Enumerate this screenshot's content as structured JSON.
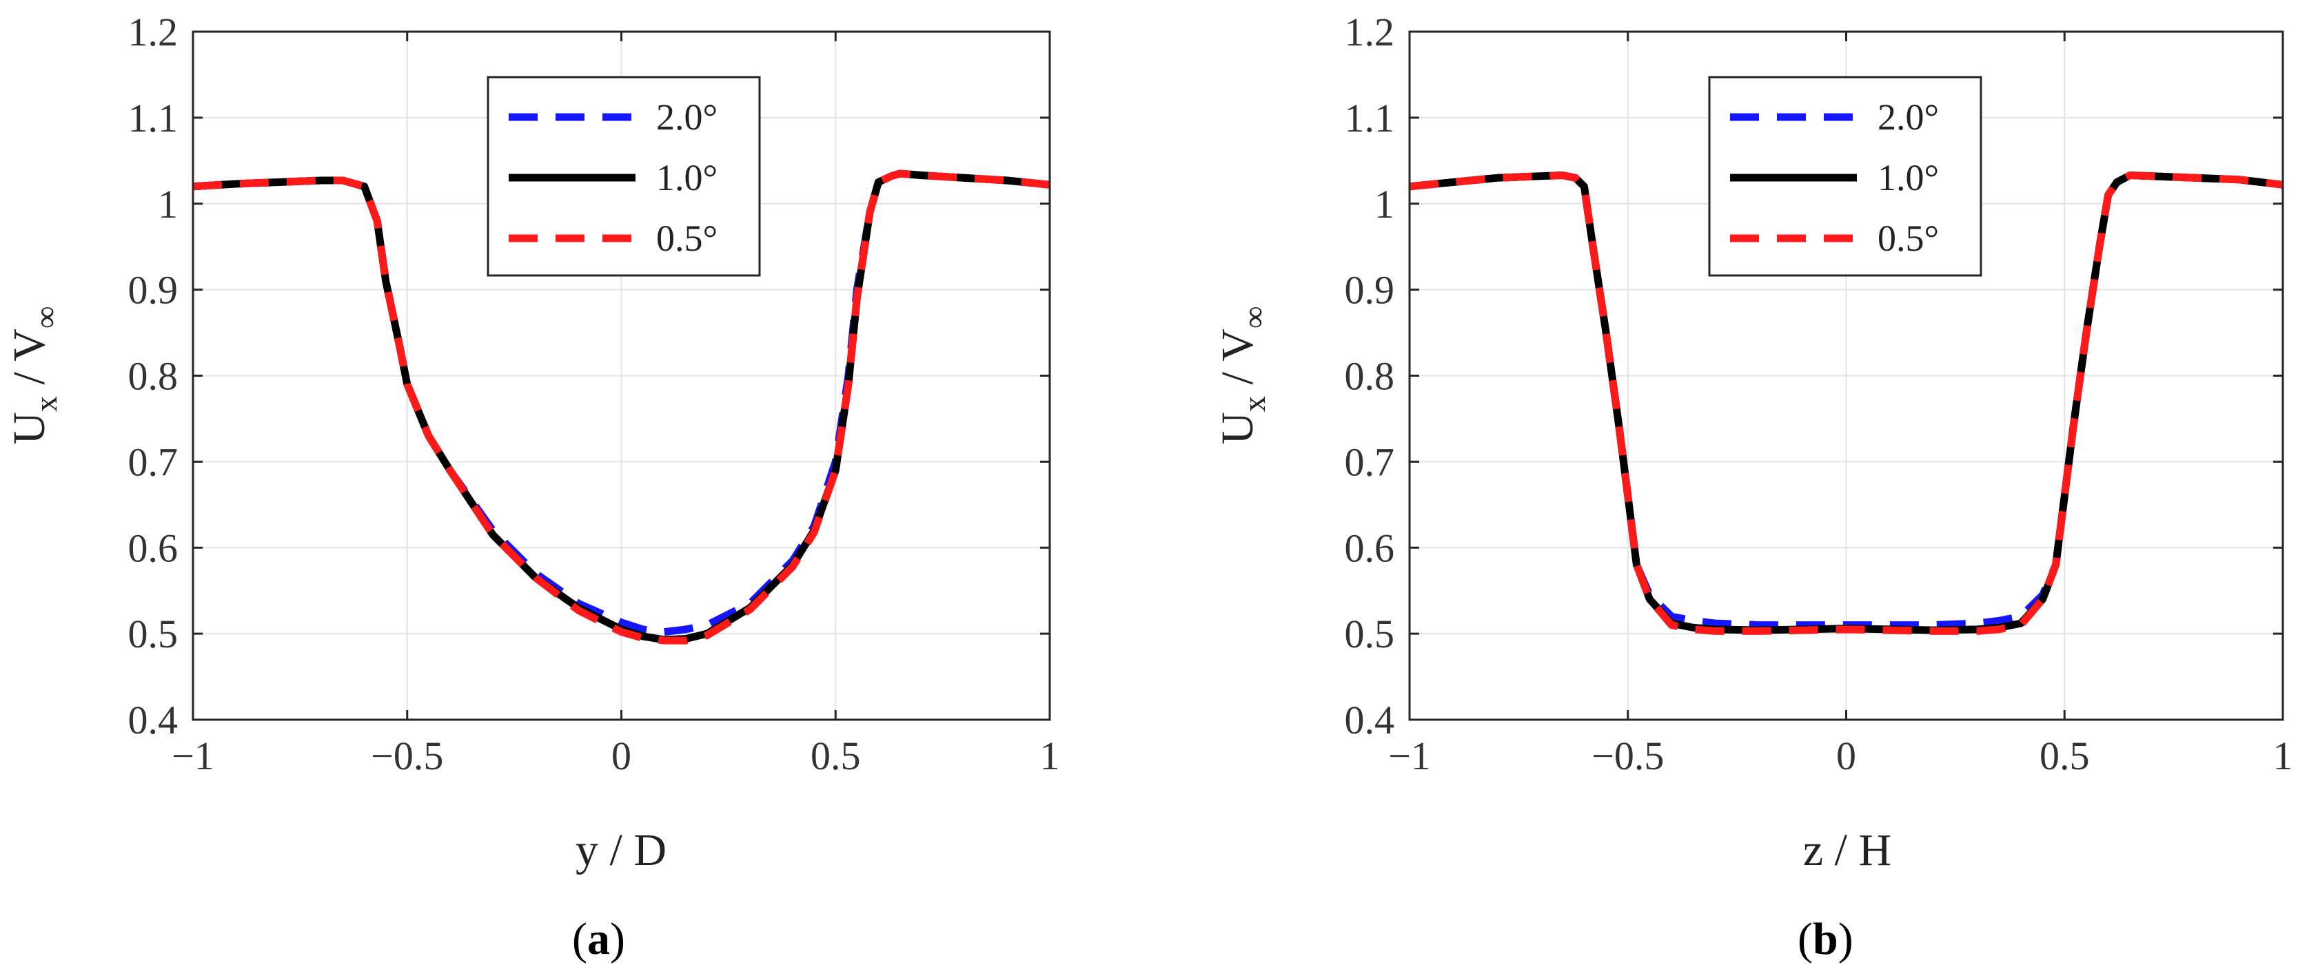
{
  "chart_data": [
    {
      "type": "line",
      "panel_label": "a",
      "xlabel": "y / D",
      "ylabel": {
        "main": "U",
        "sub1": "x",
        "mid": " / V",
        "sub2": "∞"
      },
      "xlim": [
        -1,
        1
      ],
      "ylim": [
        0.4,
        1.2
      ],
      "xticks": [
        -1,
        -0.5,
        0,
        0.5,
        1
      ],
      "xtick_labels": [
        "−1",
        "−0.5",
        "0",
        "0.5",
        "1"
      ],
      "yticks": [
        0.4,
        0.5,
        0.6,
        0.7,
        0.8,
        0.9,
        1.0,
        1.1,
        1.2
      ],
      "ytick_labels": [
        "0.4",
        "0.5",
        "0.6",
        "0.7",
        "0.8",
        "0.9",
        "1",
        "1.1",
        "1.2"
      ],
      "grid": true,
      "legend_position": "top-center",
      "series": [
        {
          "name": "2.0°",
          "color": "#1515ff",
          "style": "dashed",
          "x": [
            -1,
            -0.9,
            -0.8,
            -0.7,
            -0.65,
            -0.6,
            -0.57,
            -0.55,
            -0.52,
            -0.5,
            -0.45,
            -0.4,
            -0.3,
            -0.2,
            -0.1,
            0,
            0.05,
            0.1,
            0.15,
            0.2,
            0.3,
            0.4,
            0.45,
            0.5,
            0.53,
            0.55,
            0.58,
            0.6,
            0.63,
            0.65,
            0.7,
            0.8,
            0.9,
            1
          ],
          "y": [
            1.02,
            1.023,
            1.025,
            1.027,
            1.027,
            1.02,
            0.98,
            0.91,
            0.84,
            0.79,
            0.73,
            0.69,
            0.62,
            0.57,
            0.535,
            0.513,
            0.505,
            0.502,
            0.505,
            0.51,
            0.535,
            0.585,
            0.625,
            0.7,
            0.8,
            0.9,
            0.99,
            1.025,
            1.032,
            1.035,
            1.033,
            1.03,
            1.027,
            1.022
          ]
        },
        {
          "name": "1.0°",
          "color": "#000000",
          "style": "solid",
          "x": [
            -1,
            -0.9,
            -0.8,
            -0.7,
            -0.65,
            -0.6,
            -0.57,
            -0.55,
            -0.52,
            -0.5,
            -0.45,
            -0.4,
            -0.3,
            -0.2,
            -0.1,
            0,
            0.05,
            0.1,
            0.15,
            0.2,
            0.3,
            0.4,
            0.45,
            0.5,
            0.53,
            0.55,
            0.58,
            0.6,
            0.63,
            0.65,
            0.7,
            0.8,
            0.9,
            1
          ],
          "y": [
            1.02,
            1.023,
            1.025,
            1.027,
            1.027,
            1.02,
            0.98,
            0.91,
            0.84,
            0.79,
            0.73,
            0.69,
            0.615,
            0.565,
            0.53,
            0.505,
            0.497,
            0.493,
            0.494,
            0.5,
            0.53,
            0.58,
            0.62,
            0.69,
            0.79,
            0.89,
            0.99,
            1.025,
            1.032,
            1.035,
            1.033,
            1.03,
            1.027,
            1.022
          ]
        },
        {
          "name": "0.5°",
          "color": "#ff1a1a",
          "style": "dashed",
          "x": [
            -1,
            -0.9,
            -0.8,
            -0.7,
            -0.65,
            -0.6,
            -0.57,
            -0.55,
            -0.52,
            -0.5,
            -0.45,
            -0.4,
            -0.3,
            -0.2,
            -0.1,
            0,
            0.05,
            0.1,
            0.15,
            0.2,
            0.3,
            0.4,
            0.45,
            0.5,
            0.53,
            0.55,
            0.58,
            0.6,
            0.63,
            0.65,
            0.7,
            0.8,
            0.9,
            1
          ],
          "y": [
            1.02,
            1.023,
            1.025,
            1.027,
            1.027,
            1.02,
            0.98,
            0.91,
            0.84,
            0.79,
            0.73,
            0.69,
            0.615,
            0.565,
            0.527,
            0.502,
            0.495,
            0.492,
            0.492,
            0.498,
            0.528,
            0.578,
            0.618,
            0.69,
            0.79,
            0.89,
            0.99,
            1.025,
            1.032,
            1.035,
            1.033,
            1.03,
            1.027,
            1.022
          ]
        }
      ]
    },
    {
      "type": "line",
      "panel_label": "b",
      "xlabel": "z / H",
      "ylabel": {
        "main": "U",
        "sub1": "x",
        "mid": " / V",
        "sub2": "∞"
      },
      "xlim": [
        -1,
        1
      ],
      "ylim": [
        0.4,
        1.2
      ],
      "xticks": [
        -1,
        -0.5,
        0,
        0.5,
        1
      ],
      "xtick_labels": [
        "−1",
        "−0.5",
        "0",
        "0.5",
        "1"
      ],
      "yticks": [
        0.4,
        0.5,
        0.6,
        0.7,
        0.8,
        0.9,
        1.0,
        1.1,
        1.2
      ],
      "ytick_labels": [
        "0.4",
        "0.5",
        "0.6",
        "0.7",
        "0.8",
        "0.9",
        "1",
        "1.1",
        "1.2"
      ],
      "grid": true,
      "legend_position": "top-center",
      "series": [
        {
          "name": "2.0°",
          "color": "#1515ff",
          "style": "dashed",
          "x": [
            -1,
            -0.9,
            -0.8,
            -0.7,
            -0.65,
            -0.62,
            -0.6,
            -0.58,
            -0.55,
            -0.52,
            -0.5,
            -0.48,
            -0.45,
            -0.4,
            -0.35,
            -0.3,
            -0.2,
            -0.1,
            0,
            0.1,
            0.2,
            0.3,
            0.35,
            0.4,
            0.45,
            0.48,
            0.5,
            0.52,
            0.55,
            0.58,
            0.6,
            0.62,
            0.65,
            0.7,
            0.8,
            0.9,
            1
          ],
          "y": [
            1.02,
            1.025,
            1.03,
            1.032,
            1.033,
            1.03,
            1.02,
            0.95,
            0.85,
            0.74,
            0.66,
            0.58,
            0.545,
            0.52,
            0.515,
            0.512,
            0.51,
            0.51,
            0.51,
            0.51,
            0.51,
            0.512,
            0.515,
            0.52,
            0.545,
            0.58,
            0.66,
            0.74,
            0.85,
            0.95,
            1.01,
            1.025,
            1.033,
            1.032,
            1.03,
            1.028,
            1.022
          ]
        },
        {
          "name": "1.0°",
          "color": "#000000",
          "style": "solid",
          "x": [
            -1,
            -0.9,
            -0.8,
            -0.7,
            -0.65,
            -0.62,
            -0.6,
            -0.58,
            -0.55,
            -0.52,
            -0.5,
            -0.48,
            -0.45,
            -0.4,
            -0.35,
            -0.3,
            -0.2,
            -0.1,
            0,
            0.1,
            0.2,
            0.3,
            0.35,
            0.4,
            0.45,
            0.48,
            0.5,
            0.52,
            0.55,
            0.58,
            0.6,
            0.62,
            0.65,
            0.7,
            0.8,
            0.9,
            1
          ],
          "y": [
            1.02,
            1.025,
            1.03,
            1.032,
            1.033,
            1.03,
            1.02,
            0.95,
            0.85,
            0.74,
            0.66,
            0.58,
            0.54,
            0.512,
            0.507,
            0.505,
            0.504,
            0.505,
            0.506,
            0.505,
            0.504,
            0.505,
            0.507,
            0.512,
            0.54,
            0.58,
            0.66,
            0.74,
            0.85,
            0.95,
            1.01,
            1.025,
            1.033,
            1.032,
            1.03,
            1.028,
            1.022
          ]
        },
        {
          "name": "0.5°",
          "color": "#ff1a1a",
          "style": "dashed",
          "x": [
            -1,
            -0.9,
            -0.8,
            -0.7,
            -0.65,
            -0.62,
            -0.6,
            -0.58,
            -0.55,
            -0.52,
            -0.5,
            -0.48,
            -0.45,
            -0.4,
            -0.35,
            -0.3,
            -0.2,
            -0.1,
            0,
            0.1,
            0.2,
            0.3,
            0.35,
            0.4,
            0.45,
            0.48,
            0.5,
            0.52,
            0.55,
            0.58,
            0.6,
            0.62,
            0.65,
            0.7,
            0.8,
            0.9,
            1
          ],
          "y": [
            1.02,
            1.025,
            1.03,
            1.032,
            1.033,
            1.03,
            1.02,
            0.95,
            0.85,
            0.74,
            0.66,
            0.58,
            0.54,
            0.51,
            0.505,
            0.503,
            0.503,
            0.504,
            0.505,
            0.504,
            0.503,
            0.503,
            0.505,
            0.51,
            0.54,
            0.58,
            0.66,
            0.74,
            0.85,
            0.95,
            1.01,
            1.025,
            1.033,
            1.032,
            1.03,
            1.028,
            1.022
          ]
        }
      ]
    }
  ]
}
